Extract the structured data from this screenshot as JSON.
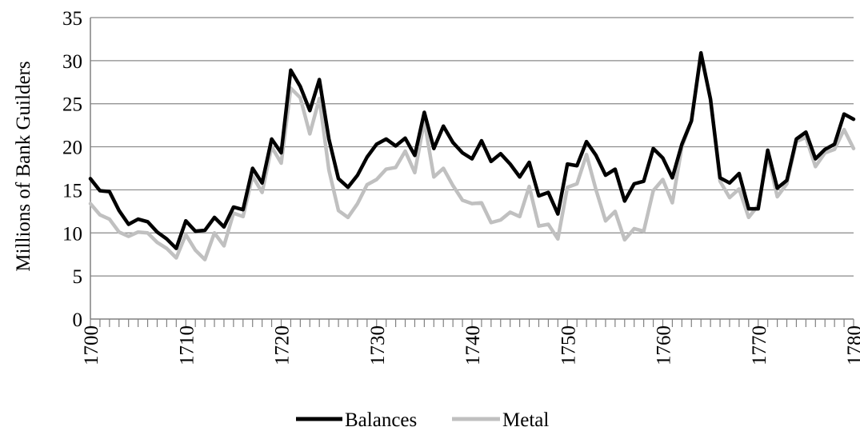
{
  "chart_data": {
    "type": "line",
    "title": "",
    "xlabel": "",
    "ylabel": "Millions of Bank Guilders",
    "xlim": [
      1700,
      1780
    ],
    "ylim": [
      0,
      35
    ],
    "y_ticks": [
      0,
      5,
      10,
      15,
      20,
      25,
      30,
      35
    ],
    "x_ticks": [
      1700,
      1710,
      1720,
      1730,
      1740,
      1750,
      1760,
      1770,
      1780
    ],
    "grid": "horizontal",
    "legend": "bottom",
    "x": [
      1700,
      1701,
      1702,
      1703,
      1704,
      1705,
      1706,
      1707,
      1708,
      1709,
      1710,
      1711,
      1712,
      1713,
      1714,
      1715,
      1716,
      1717,
      1718,
      1719,
      1720,
      1721,
      1722,
      1723,
      1724,
      1725,
      1726,
      1727,
      1728,
      1729,
      1730,
      1731,
      1732,
      1733,
      1734,
      1735,
      1736,
      1737,
      1738,
      1739,
      1740,
      1741,
      1742,
      1743,
      1744,
      1745,
      1746,
      1747,
      1748,
      1749,
      1750,
      1751,
      1752,
      1753,
      1754,
      1755,
      1756,
      1757,
      1758,
      1759,
      1760,
      1761,
      1762,
      1763,
      1764,
      1765,
      1766,
      1767,
      1768,
      1769,
      1770,
      1771,
      1772,
      1773,
      1774,
      1775,
      1776,
      1777,
      1778,
      1779,
      1780
    ],
    "series": [
      {
        "name": "Balances",
        "color": "#000000",
        "values": [
          16.3,
          14.9,
          14.8,
          12.6,
          11.0,
          11.6,
          11.3,
          10.1,
          9.3,
          8.2,
          11.4,
          10.2,
          10.3,
          11.8,
          10.7,
          13.0,
          12.7,
          17.5,
          15.8,
          20.9,
          19.3,
          28.9,
          27.0,
          24.2,
          27.8,
          20.9,
          16.3,
          15.3,
          16.7,
          18.8,
          20.3,
          20.9,
          20.1,
          21.0,
          19.0,
          24.0,
          19.8,
          22.4,
          20.5,
          19.3,
          18.6,
          20.7,
          18.3,
          19.2,
          18.0,
          16.5,
          18.2,
          14.3,
          14.7,
          12.2,
          18.0,
          17.8,
          20.6,
          19.0,
          16.7,
          17.4,
          13.7,
          15.7,
          16.0,
          19.8,
          18.7,
          16.4,
          20.3,
          23.0,
          30.9,
          25.5,
          16.4,
          15.8,
          16.9,
          12.8,
          12.8,
          19.6,
          15.2,
          16.1,
          20.9,
          21.7,
          18.6,
          19.7,
          20.3,
          23.8,
          23.2
        ]
      },
      {
        "name": "Metal",
        "color": "#c0c0c0",
        "values": [
          13.4,
          12.1,
          11.6,
          10.1,
          9.6,
          10.1,
          10.0,
          8.9,
          8.2,
          7.1,
          9.8,
          8.0,
          6.9,
          10.0,
          8.5,
          12.3,
          11.9,
          16.6,
          14.7,
          20.0,
          18.1,
          26.8,
          25.7,
          21.5,
          25.6,
          17.3,
          12.6,
          11.8,
          13.4,
          15.6,
          16.2,
          17.4,
          17.6,
          19.5,
          17.0,
          23.0,
          16.5,
          17.5,
          15.5,
          13.8,
          13.4,
          13.5,
          11.2,
          11.5,
          12.4,
          11.9,
          15.4,
          10.8,
          11.0,
          9.3,
          15.3,
          15.7,
          19.1,
          15.0,
          11.4,
          12.5,
          9.2,
          10.5,
          10.2,
          14.9,
          16.2,
          13.5,
          20.0,
          23.0,
          30.6,
          25.6,
          16.0,
          14.1,
          15.1,
          11.8,
          13.2,
          19.1,
          14.2,
          15.7,
          20.6,
          21.1,
          17.7,
          19.3,
          19.7,
          22.0,
          19.8
        ]
      }
    ]
  }
}
